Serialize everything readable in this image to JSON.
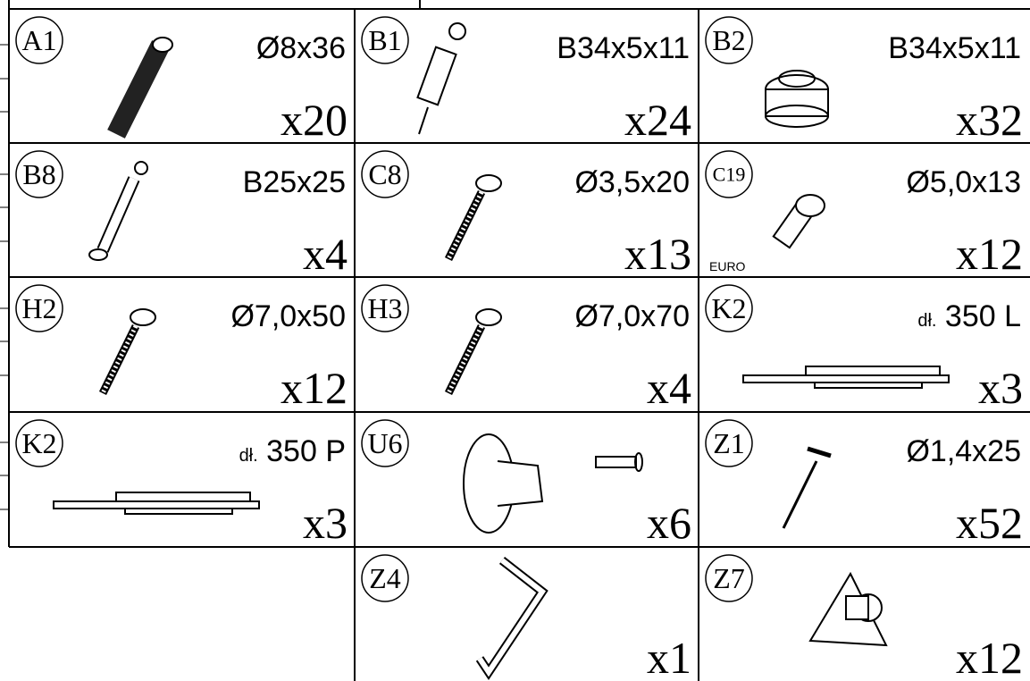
{
  "cells": [
    {
      "code": "A1",
      "spec": "Ø8x36",
      "quantity": "x20"
    },
    {
      "code": "B1",
      "spec": "B34x5x11",
      "quantity": "x24"
    },
    {
      "code": "B2",
      "spec": "B34x5x11",
      "quantity": "x32"
    },
    {
      "code": "B8",
      "spec": "B25x25",
      "quantity": "x4"
    },
    {
      "code": "C8",
      "spec": "Ø3,5x20",
      "quantity": "x13"
    },
    {
      "code": "C19",
      "spec": "Ø5,0x13",
      "quantity": "x12",
      "note": "EURO"
    },
    {
      "code": "H2",
      "spec": "Ø7,0x50",
      "quantity": "x12"
    },
    {
      "code": "H3",
      "spec": "Ø7,0x70",
      "quantity": "x4"
    },
    {
      "code": "K2",
      "spec_prefix": "dł.",
      "spec": "350 L",
      "quantity": "x3"
    },
    {
      "code": "K2",
      "spec_prefix": "dł.",
      "spec": "350 P",
      "quantity": "x3"
    },
    {
      "code": "U6",
      "quantity": "x6"
    },
    {
      "code": "Z1",
      "spec": "Ø1,4x25",
      "quantity": "x52"
    },
    {
      "code": "Z4",
      "quantity": "x1"
    },
    {
      "code": "Z7",
      "quantity": "x12"
    }
  ]
}
